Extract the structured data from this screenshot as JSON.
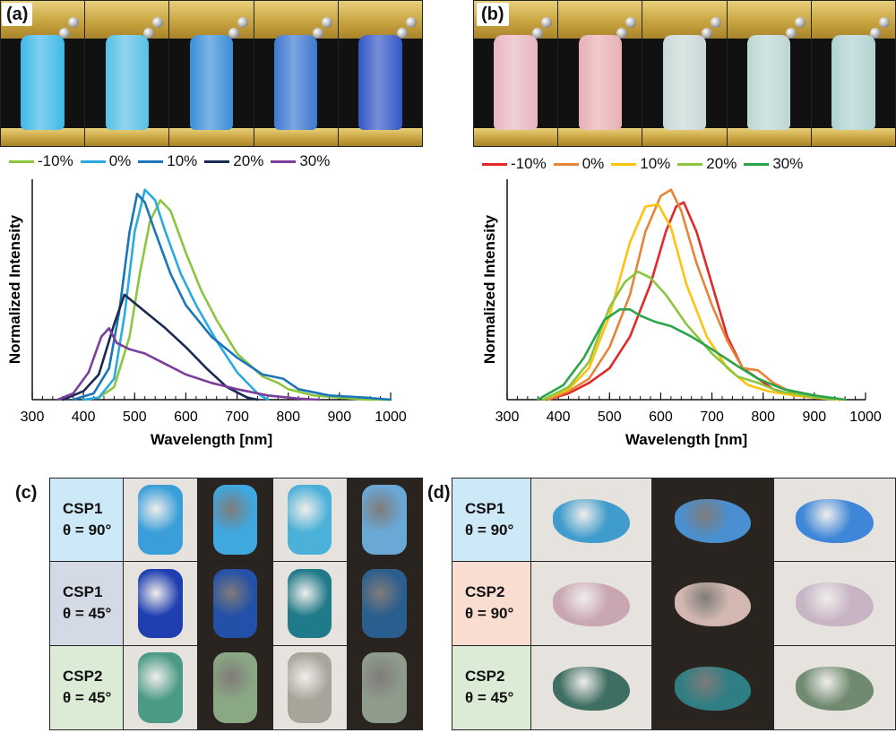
{
  "panels": {
    "a": {
      "label": "(a)"
    },
    "b": {
      "label": "(b)"
    },
    "c": {
      "label": "(c)"
    },
    "d": {
      "label": "(d)"
    }
  },
  "colors": {
    "a": [
      "#8cc63f",
      "#29abe2",
      "#1b75bb",
      "#1b2a52",
      "#7a3f9a"
    ],
    "b": [
      "#e02a2a",
      "#e7843a",
      "#ffc20e",
      "#8cc63f",
      "#2aa54a"
    ],
    "specimens_a": [
      "#3fb8e8",
      "#58c0e6",
      "#3a8ed6",
      "#3d78d0",
      "#3357c6"
    ],
    "specimens_b": [
      "#e8b6c0",
      "#e8b0b4",
      "#c8d8d6",
      "#bcd6d2",
      "#b0d2d0"
    ],
    "csp1_bg": "#cde8f6",
    "csp1b_bg": "#d4d9e6",
    "csp2_bg": "#dcebd6",
    "csp2_orange_bg": "#f8ddd0"
  },
  "chart_data": [
    {
      "type": "line",
      "xlabel": "Wavelength [nm]",
      "ylabel": "Normalized Intensity",
      "xlim": [
        300,
        1000
      ],
      "xticks": [
        "300",
        "400",
        "500",
        "600",
        "700",
        "800",
        "900",
        "1000"
      ],
      "ylim": [
        0,
        1.05
      ],
      "legend_position": "top",
      "series": [
        {
          "name": "-10%",
          "x": [
            400,
            430,
            460,
            490,
            510,
            530,
            550,
            570,
            600,
            630,
            660,
            700,
            750,
            780,
            800,
            850,
            900,
            950,
            1000
          ],
          "y": [
            0,
            0.01,
            0.06,
            0.3,
            0.6,
            0.85,
            0.95,
            0.9,
            0.7,
            0.52,
            0.38,
            0.22,
            0.11,
            0.08,
            0.05,
            0.02,
            0.01,
            0,
            0
          ]
        },
        {
          "name": "0%",
          "x": [
            400,
            430,
            460,
            480,
            500,
            520,
            540,
            560,
            590,
            620,
            660,
            700,
            740,
            760
          ],
          "y": [
            0,
            0.01,
            0.1,
            0.4,
            0.8,
            1.0,
            0.95,
            0.8,
            0.6,
            0.45,
            0.28,
            0.13,
            0.03,
            0
          ]
        },
        {
          "name": "10%",
          "x": [
            380,
            420,
            450,
            470,
            490,
            505,
            520,
            540,
            570,
            600,
            650,
            700,
            750,
            790,
            820,
            880,
            950,
            1000
          ],
          "y": [
            0,
            0.03,
            0.15,
            0.42,
            0.8,
            0.98,
            0.94,
            0.8,
            0.6,
            0.45,
            0.3,
            0.2,
            0.12,
            0.1,
            0.05,
            0.02,
            0.01,
            0
          ]
        },
        {
          "name": "20%",
          "x": [
            360,
            400,
            430,
            460,
            480,
            500,
            530,
            560,
            600,
            640,
            680,
            720,
            740
          ],
          "y": [
            0,
            0.04,
            0.12,
            0.36,
            0.5,
            0.46,
            0.4,
            0.34,
            0.25,
            0.15,
            0.06,
            0.01,
            0
          ]
        },
        {
          "name": "30%",
          "x": [
            350,
            380,
            410,
            435,
            450,
            465,
            490,
            520,
            560,
            600,
            650,
            700,
            760,
            820,
            860
          ],
          "y": [
            0,
            0.03,
            0.13,
            0.3,
            0.34,
            0.27,
            0.24,
            0.22,
            0.17,
            0.12,
            0.08,
            0.05,
            0.02,
            0.005,
            0
          ]
        }
      ]
    },
    {
      "type": "line",
      "xlabel": "Wavelength [nm]",
      "ylabel": "Normalized Intensity",
      "xlim": [
        300,
        1000
      ],
      "xticks": [
        "300",
        "400",
        "500",
        "600",
        "700",
        "800",
        "900",
        "1000"
      ],
      "ylim": [
        0,
        1.05
      ],
      "legend_position": "top",
      "series": [
        {
          "name": "-10%",
          "x": [
            380,
            420,
            460,
            500,
            540,
            580,
            610,
            630,
            645,
            670,
            700,
            730,
            760,
            790,
            820,
            860,
            900,
            950
          ],
          "y": [
            0,
            0.03,
            0.08,
            0.15,
            0.3,
            0.55,
            0.8,
            0.92,
            0.94,
            0.8,
            0.55,
            0.3,
            0.15,
            0.1,
            0.05,
            0.02,
            0.01,
            0
          ]
        },
        {
          "name": "0%",
          "x": [
            380,
            420,
            460,
            500,
            540,
            570,
            600,
            620,
            640,
            670,
            700,
            730,
            760,
            790,
            820,
            860,
            900,
            950
          ],
          "y": [
            0,
            0.04,
            0.1,
            0.25,
            0.5,
            0.8,
            0.97,
            1.0,
            0.9,
            0.65,
            0.45,
            0.28,
            0.15,
            0.14,
            0.08,
            0.03,
            0.01,
            0
          ]
        },
        {
          "name": "10%",
          "x": [
            370,
            420,
            460,
            500,
            540,
            570,
            595,
            620,
            650,
            690,
            730,
            770,
            810,
            860,
            920,
            960
          ],
          "y": [
            0,
            0.05,
            0.15,
            0.4,
            0.75,
            0.92,
            0.93,
            0.82,
            0.55,
            0.3,
            0.15,
            0.07,
            0.04,
            0.02,
            0.005,
            0
          ]
        },
        {
          "name": "20%",
          "x": [
            370,
            420,
            460,
            500,
            530,
            555,
            580,
            610,
            650,
            700,
            750,
            790,
            830,
            880,
            940
          ],
          "y": [
            0,
            0.06,
            0.18,
            0.44,
            0.56,
            0.61,
            0.58,
            0.5,
            0.36,
            0.22,
            0.11,
            0.08,
            0.04,
            0.02,
            0
          ]
        },
        {
          "name": "30%",
          "x": [
            360,
            410,
            450,
            490,
            520,
            540,
            560,
            590,
            620,
            660,
            700,
            750,
            790,
            840,
            900,
            960
          ],
          "y": [
            0,
            0.07,
            0.2,
            0.38,
            0.43,
            0.43,
            0.4,
            0.37,
            0.35,
            0.3,
            0.24,
            0.16,
            0.1,
            0.05,
            0.02,
            0
          ]
        }
      ]
    }
  ],
  "table_c": {
    "rows": [
      {
        "name": "CSP1",
        "theta": "θ = 90°",
        "bg": "#cde8f6",
        "photo_colors": [
          "#3a9fd8",
          "#3fa8df",
          "#4cb1d8",
          "#6aa8d6"
        ]
      },
      {
        "name": "CSP1",
        "theta": "θ = 45°",
        "bg": "#d4d9e6",
        "photo_colors": [
          "#1f3fb0",
          "#2350a8",
          "#1f7a8a",
          "#2a5e8e"
        ]
      },
      {
        "name": "CSP2",
        "theta": "θ = 45°",
        "bg": "#dcebd6",
        "photo_colors": [
          "#4a9a86",
          "#8aa884",
          "#a7a49a",
          "#8f9c8c"
        ]
      }
    ]
  },
  "table_d": {
    "rows": [
      {
        "name": "CSP1",
        "theta": "θ = 90°",
        "bg": "#cde8f6",
        "photo_colors": [
          "#3f9ccc",
          "#4a8fd0",
          "#3d86d8"
        ]
      },
      {
        "name": "CSP2",
        "theta": "θ = 90°",
        "bg": "#f8ddd0",
        "photo_colors": [
          "#c9a7b2",
          "#d2b8b0",
          "#c7b4c4"
        ]
      },
      {
        "name": "CSP2",
        "theta": "θ = 45°",
        "bg": "#dcebd6",
        "photo_colors": [
          "#3f6e62",
          "#2f7e84",
          "#6f8a6e"
        ]
      }
    ]
  }
}
